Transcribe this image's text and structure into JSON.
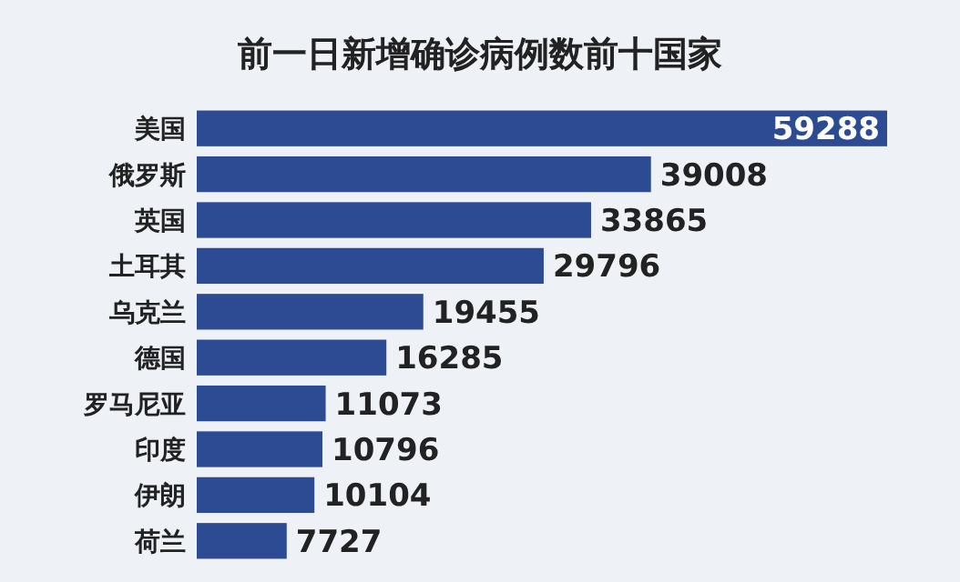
{
  "chart_data": {
    "type": "bar",
    "orientation": "horizontal",
    "title": "前一日新增确诊病例数前十国家",
    "categories": [
      "美国",
      "俄罗斯",
      "英国",
      "土耳其",
      "乌克兰",
      "德国",
      "罗马尼亚",
      "印度",
      "伊朗",
      "荷兰"
    ],
    "values": [
      59288,
      39008,
      33865,
      29796,
      19455,
      16285,
      11073,
      10796,
      10104,
      7727
    ],
    "color": "#2d4b93",
    "data_labels": true
  }
}
